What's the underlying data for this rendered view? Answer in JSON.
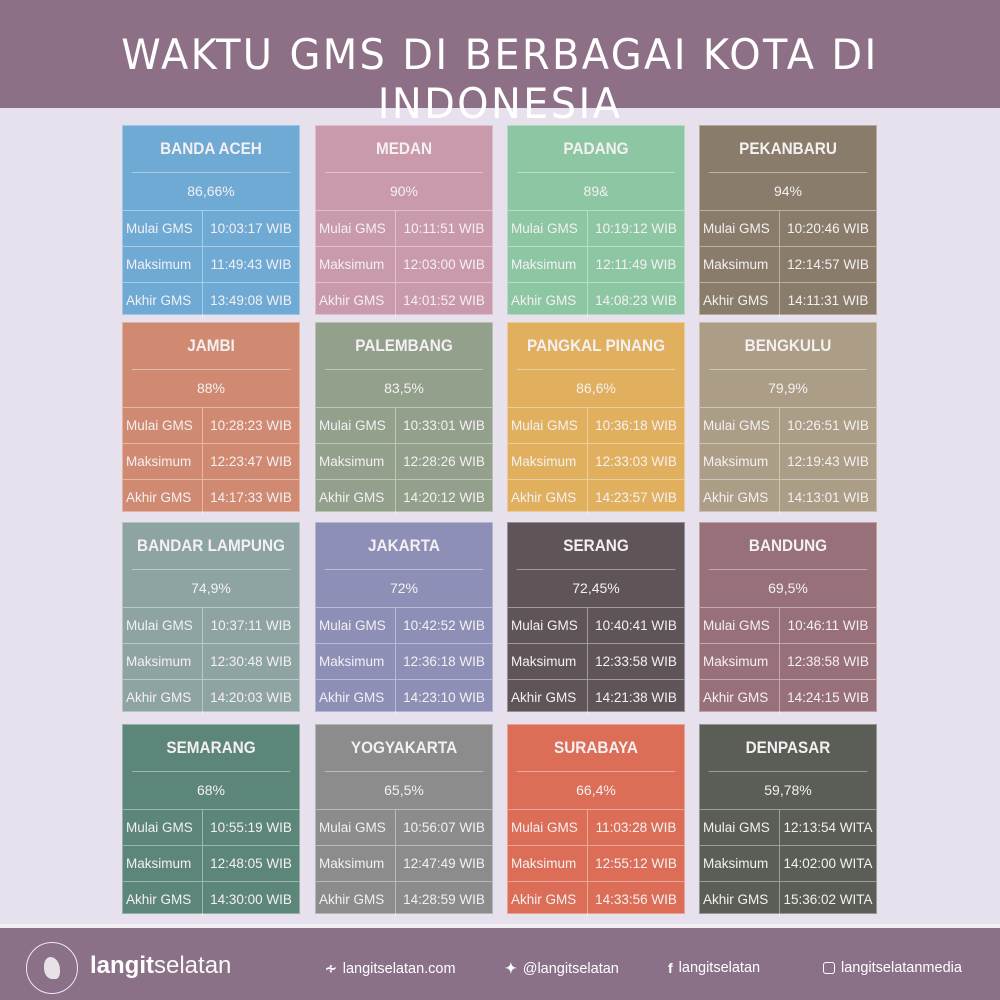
{
  "header": {
    "title": "WAKTU GMS DI BERBAGAI KOTA DI INDONESIA"
  },
  "labels": {
    "start": "Mulai GMS",
    "max": "Maksimum",
    "end": "Akhir GMS"
  },
  "cities": [
    {
      "name": "BANDA ACEH",
      "percent": "86,66%",
      "start": "10:03:17 WIB",
      "max": "11:49:43 WIB",
      "end": "13:49:08 WIB",
      "color": "#6eaad4"
    },
    {
      "name": "MEDAN",
      "percent": "90%",
      "start": "10:11:51 WIB",
      "max": "12:03:00 WIB",
      "end": "14:01:52 WIB",
      "color": "#c99aab"
    },
    {
      "name": "PADANG",
      "percent": "89&",
      "start": "10:19:12 WIB",
      "max": "12:11:49 WIB",
      "end": "14:08:23 WIB",
      "color": "#8dc6a2"
    },
    {
      "name": "PEKANBARU",
      "percent": "94%",
      "start": "10:20:46 WIB",
      "max": "12:14:57 WIB",
      "end": "14:11:31 WIB",
      "color": "#8a7c6b"
    },
    {
      "name": "JAMBI",
      "percent": "88%",
      "start": "10:28:23 WIB",
      "max": "12:23:47 WIB",
      "end": "14:17:33 WIB",
      "color": "#d08a72"
    },
    {
      "name": "PALEMBANG",
      "percent": "83,5%",
      "start": "10:33:01 WIB",
      "max": "12:28:26 WIB",
      "end": "14:20:12 WIB",
      "color": "#93a08c"
    },
    {
      "name": "PANGKAL PINANG",
      "percent": "86,6%",
      "start": "10:36:18 WIB",
      "max": "12:33:03 WIB",
      "end": "14:23:57 WIB",
      "color": "#e0b05e"
    },
    {
      "name": "BENGKULU",
      "percent": "79,9%",
      "start": "10:26:51 WIB",
      "max": "12:19:43 WIB",
      "end": "14:13:01 WIB",
      "color": "#ab9d86"
    },
    {
      "name": "BANDAR LAMPUNG",
      "percent": "74,9%",
      "start": "10:37:11 WIB",
      "max": "12:30:48 WIB",
      "end": "14:20:03 WIB",
      "color": "#8ea4a3"
    },
    {
      "name": "JAKARTA",
      "percent": "72%",
      "start": "10:42:52 WIB",
      "max": "12:36:18 WIB",
      "end": "14:23:10 WIB",
      "color": "#8d8fb6"
    },
    {
      "name": "SERANG",
      "percent": "72,45%",
      "start": "10:40:41 WIB",
      "max": "12:33:58 WIB",
      "end": "14:21:38 WIB",
      "color": "#5f5559"
    },
    {
      "name": "BANDUNG",
      "percent": "69,5%",
      "start": "10:46:11 WIB",
      "max": "12:38:58 WIB",
      "end": "14:24:15 WIB",
      "color": "#987079"
    },
    {
      "name": "SEMARANG",
      "percent": "68%",
      "start": "10:55:19 WIB",
      "max": "12:48:05 WIB",
      "end": "14:30:00 WIB",
      "color": "#5c8679"
    },
    {
      "name": "YOGYAKARTA",
      "percent": "65,5%",
      "start": "10:56:07 WIB",
      "max": "12:47:49 WIB",
      "end": "14:28:59 WIB",
      "color": "#8c8c8c"
    },
    {
      "name": "SURABAYA",
      "percent": "66,4%",
      "start": "11:03:28 WIB",
      "max": "12:55:12 WIB",
      "end": "14:33:56 WIB",
      "color": "#dc6e58"
    },
    {
      "name": "DENPASAR",
      "percent": "59,78%",
      "start": "12:13:54 WITA",
      "max": "14:02:00 WITA",
      "end": "15:36:02 WITA",
      "color": "#5a5e56"
    }
  ],
  "footer": {
    "brand_bold": "langit",
    "brand_light": "selatan",
    "logo_text": "LANGITSELATAN",
    "website": "langitselatan.com",
    "twitter": "@langitselatan",
    "facebook": "langitselatan",
    "instagram": "langitselatanmedia"
  }
}
